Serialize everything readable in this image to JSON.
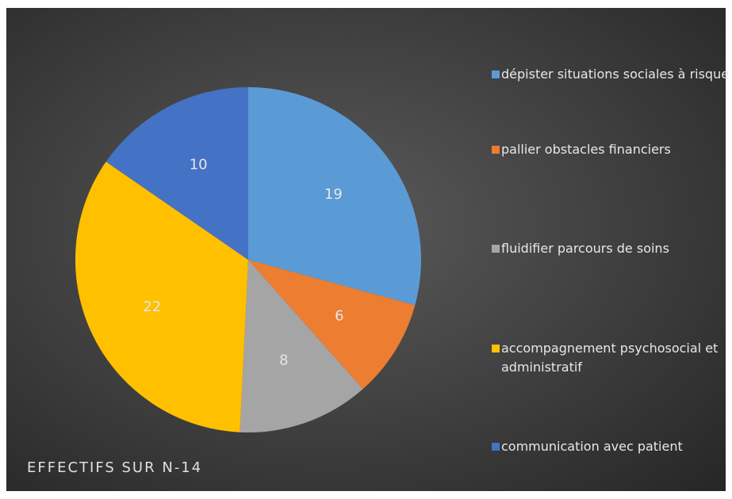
{
  "chart_data": {
    "type": "pie",
    "title": "EFFECTIFS SUR N-14",
    "categories": [
      "dépister situations sociales à risque",
      "pallier obstacles financiers",
      "fluidifier parcours de soins",
      "accompagnement  psychosocial et administratif",
      "communication avec patient"
    ],
    "values": [
      19,
      6,
      8,
      22,
      10
    ],
    "colors": [
      "#5b9bd5",
      "#ed7d31",
      "#a5a5a5",
      "#ffc000",
      "#4472c4"
    ],
    "legend": "right"
  }
}
